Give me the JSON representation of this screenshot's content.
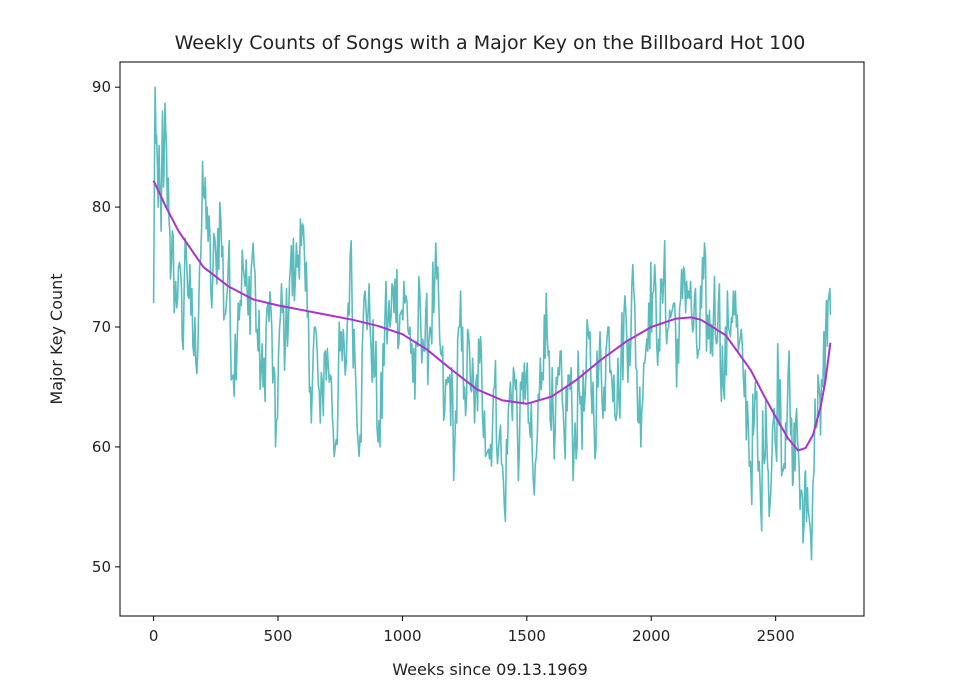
{
  "chart_data": {
    "type": "line",
    "title": "Weekly Counts of Songs with a Major Key on the Billboard Hot 100",
    "xlabel": "Weeks since 09.13.1969",
    "ylabel": "Major Key Count",
    "xlim": [
      -135,
      2855
    ],
    "ylim": [
      45.9,
      92.1
    ],
    "xticks": [
      0,
      500,
      1000,
      1500,
      2000,
      2500
    ],
    "yticks": [
      50,
      60,
      70,
      80,
      90
    ],
    "grid": false,
    "legend": "none",
    "series": [
      {
        "kind": "raw",
        "color": "#5bbcbe",
        "anchors": [
          [
            0,
            72
          ],
          [
            6,
            90
          ],
          [
            12,
            86
          ],
          [
            18,
            80
          ],
          [
            25,
            82
          ],
          [
            30,
            78
          ],
          [
            36,
            88
          ],
          [
            42,
            83
          ],
          [
            48,
            87
          ],
          [
            55,
            80
          ],
          [
            62,
            79
          ],
          [
            68,
            74
          ],
          [
            75,
            78
          ],
          [
            85,
            72
          ],
          [
            100,
            75
          ],
          [
            115,
            69
          ],
          [
            130,
            77
          ],
          [
            150,
            71
          ],
          [
            170,
            67
          ],
          [
            185,
            75
          ],
          [
            200,
            81
          ],
          [
            215,
            80
          ],
          [
            230,
            73
          ],
          [
            250,
            76
          ],
          [
            270,
            79
          ],
          [
            285,
            71
          ],
          [
            300,
            75
          ],
          [
            320,
            66
          ],
          [
            340,
            72
          ],
          [
            360,
            75
          ],
          [
            380,
            71
          ],
          [
            400,
            77
          ],
          [
            420,
            68
          ],
          [
            440,
            65
          ],
          [
            460,
            72
          ],
          [
            475,
            70
          ],
          [
            490,
            60
          ],
          [
            510,
            71
          ],
          [
            530,
            69
          ],
          [
            550,
            75
          ],
          [
            570,
            74
          ],
          [
            590,
            79
          ],
          [
            610,
            73
          ],
          [
            630,
            65
          ],
          [
            650,
            70
          ],
          [
            670,
            62
          ],
          [
            690,
            68
          ],
          [
            710,
            66
          ],
          [
            730,
            60
          ],
          [
            750,
            68
          ],
          [
            770,
            66
          ],
          [
            790,
            76
          ],
          [
            810,
            67
          ],
          [
            830,
            61
          ],
          [
            850,
            73
          ],
          [
            870,
            70
          ],
          [
            890,
            66
          ],
          [
            910,
            60
          ],
          [
            930,
            71
          ],
          [
            950,
            70
          ],
          [
            970,
            74
          ],
          [
            990,
            71
          ],
          [
            1010,
            72
          ],
          [
            1030,
            70
          ],
          [
            1050,
            64
          ],
          [
            1070,
            73
          ],
          [
            1090,
            68
          ],
          [
            1110,
            70
          ],
          [
            1130,
            74
          ],
          [
            1150,
            69
          ],
          [
            1170,
            63
          ],
          [
            1190,
            66
          ],
          [
            1210,
            60
          ],
          [
            1230,
            70
          ],
          [
            1250,
            65
          ],
          [
            1270,
            68
          ],
          [
            1290,
            62
          ],
          [
            1310,
            67
          ],
          [
            1330,
            63
          ],
          [
            1350,
            59
          ],
          [
            1370,
            65
          ],
          [
            1390,
            61
          ],
          [
            1410,
            55
          ],
          [
            1430,
            64
          ],
          [
            1450,
            66
          ],
          [
            1470,
            60
          ],
          [
            1490,
            67
          ],
          [
            1510,
            62
          ],
          [
            1530,
            56
          ],
          [
            1550,
            64
          ],
          [
            1570,
            71
          ],
          [
            1590,
            68
          ],
          [
            1610,
            59
          ],
          [
            1630,
            66
          ],
          [
            1650,
            61
          ],
          [
            1670,
            66
          ],
          [
            1690,
            60
          ],
          [
            1710,
            65
          ],
          [
            1730,
            63
          ],
          [
            1750,
            69
          ],
          [
            1770,
            62
          ],
          [
            1790,
            67
          ],
          [
            1810,
            65
          ],
          [
            1830,
            70
          ],
          [
            1850,
            66
          ],
          [
            1870,
            64
          ],
          [
            1890,
            71
          ],
          [
            1910,
            69
          ],
          [
            1930,
            73
          ],
          [
            1950,
            62
          ],
          [
            1970,
            67
          ],
          [
            1990,
            72
          ],
          [
            2010,
            73
          ],
          [
            2030,
            69
          ],
          [
            2050,
            74
          ],
          [
            2070,
            70
          ],
          [
            2090,
            72
          ],
          [
            2110,
            67
          ],
          [
            2130,
            75
          ],
          [
            2150,
            73
          ],
          [
            2170,
            70
          ],
          [
            2190,
            68
          ],
          [
            2210,
            74
          ],
          [
            2230,
            69
          ],
          [
            2250,
            71
          ],
          [
            2270,
            72
          ],
          [
            2290,
            65
          ],
          [
            2310,
            70
          ],
          [
            2330,
            73
          ],
          [
            2350,
            68
          ],
          [
            2370,
            66
          ],
          [
            2390,
            62
          ],
          [
            2400,
            58
          ],
          [
            2410,
            61
          ],
          [
            2420,
            64
          ],
          [
            2430,
            58
          ],
          [
            2440,
            55
          ],
          [
            2450,
            60
          ],
          [
            2460,
            64
          ],
          [
            2470,
            58
          ],
          [
            2480,
            56
          ],
          [
            2490,
            62
          ],
          [
            2500,
            60
          ],
          [
            2510,
            67
          ],
          [
            2520,
            64
          ],
          [
            2530,
            58
          ],
          [
            2540,
            62
          ],
          [
            2550,
            66
          ],
          [
            2560,
            61
          ],
          [
            2570,
            57
          ],
          [
            2580,
            62
          ],
          [
            2590,
            60
          ],
          [
            2600,
            56
          ],
          [
            2610,
            52
          ],
          [
            2620,
            58
          ],
          [
            2630,
            55
          ],
          [
            2640,
            53
          ],
          [
            2650,
            57
          ],
          [
            2660,
            62
          ],
          [
            2670,
            66
          ],
          [
            2680,
            61
          ],
          [
            2690,
            65
          ],
          [
            2700,
            69
          ],
          [
            2710,
            72
          ],
          [
            2720,
            71
          ]
        ]
      },
      {
        "kind": "smoothed",
        "color": "#aa33cc",
        "points": [
          [
            0,
            82.2
          ],
          [
            50,
            80.0
          ],
          [
            100,
            78.0
          ],
          [
            150,
            76.5
          ],
          [
            200,
            75.0
          ],
          [
            300,
            73.4
          ],
          [
            400,
            72.3
          ],
          [
            500,
            71.8
          ],
          [
            600,
            71.4
          ],
          [
            700,
            71.0
          ],
          [
            800,
            70.6
          ],
          [
            900,
            70.1
          ],
          [
            1000,
            69.4
          ],
          [
            1100,
            68.1
          ],
          [
            1200,
            66.4
          ],
          [
            1300,
            64.8
          ],
          [
            1400,
            63.9
          ],
          [
            1500,
            63.6
          ],
          [
            1600,
            64.2
          ],
          [
            1700,
            65.6
          ],
          [
            1800,
            67.3
          ],
          [
            1900,
            68.8
          ],
          [
            2000,
            70.0
          ],
          [
            2100,
            70.7
          ],
          [
            2160,
            70.8
          ],
          [
            2200,
            70.6
          ],
          [
            2300,
            69.3
          ],
          [
            2400,
            66.4
          ],
          [
            2450,
            64.4
          ],
          [
            2500,
            62.5
          ],
          [
            2550,
            60.7
          ],
          [
            2590,
            59.7
          ],
          [
            2620,
            59.9
          ],
          [
            2650,
            61.0
          ],
          [
            2680,
            63.3
          ],
          [
            2700,
            65.5
          ],
          [
            2720,
            68.7
          ]
        ]
      }
    ]
  }
}
